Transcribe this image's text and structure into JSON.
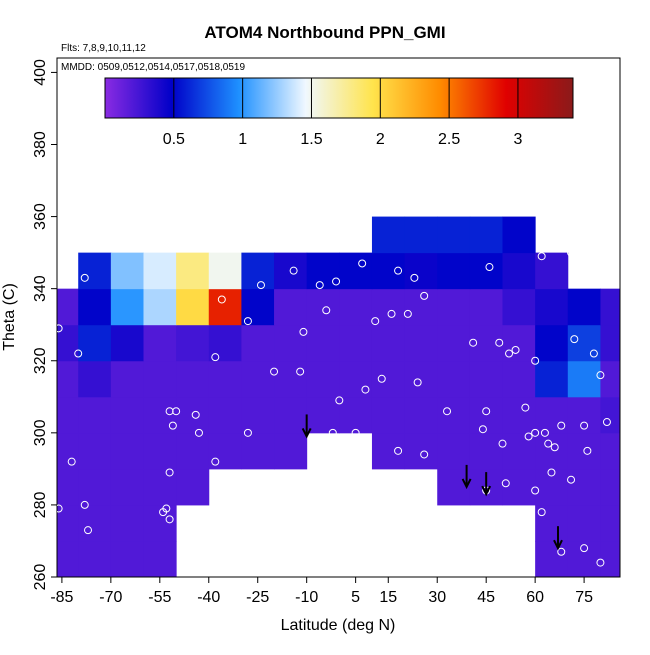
{
  "chart_data": {
    "type": "heatmap",
    "title": "ATOM4 Northbound PPN_GMI",
    "subtitle": "Flts: 7,8,9,10,11,12",
    "annotation": "MMDD: 0509,0512,0514,0517,0518,0519",
    "x_label": "Latitude (deg N)",
    "y_label": "Theta (C)",
    "xlim": [
      -86.5,
      86
    ],
    "ylim": [
      260,
      404
    ],
    "xticks": [
      -85,
      -70,
      -55,
      -40,
      -25,
      -10,
      5,
      15,
      30,
      45,
      60,
      75
    ],
    "yticks": [
      260,
      280,
      300,
      320,
      340,
      360,
      380,
      400
    ],
    "x_bins": [
      -90,
      -80,
      -70,
      -60,
      -50,
      -40,
      -30,
      -20,
      -10,
      0,
      10,
      20,
      30,
      40,
      50,
      60,
      70,
      80,
      90
    ],
    "y_bins": [
      260,
      270,
      280,
      290,
      300,
      310,
      320,
      330,
      340,
      350,
      360
    ],
    "z": [
      [
        0.2,
        0.2,
        0.2,
        0.2,
        null,
        null,
        null,
        null,
        null,
        null,
        null,
        null,
        null,
        null,
        null,
        0.2,
        0.2,
        0.2
      ],
      [
        0.2,
        0.2,
        0.2,
        0.2,
        null,
        null,
        null,
        null,
        null,
        null,
        null,
        null,
        null,
        null,
        null,
        0.2,
        0.2,
        0.2
      ],
      [
        0.2,
        0.2,
        0.2,
        0.2,
        0.2,
        null,
        null,
        null,
        null,
        null,
        null,
        null,
        0.2,
        0.2,
        0.2,
        0.2,
        0.2,
        0.2
      ],
      [
        0.2,
        0.2,
        0.2,
        0.2,
        0.2,
        0.2,
        0.2,
        0.2,
        null,
        null,
        0.2,
        0.2,
        0.2,
        0.2,
        0.2,
        0.2,
        0.2,
        0.2
      ],
      [
        0.2,
        0.2,
        0.2,
        0.2,
        0.2,
        0.2,
        0.2,
        0.2,
        0.2,
        0.2,
        0.2,
        0.2,
        0.2,
        0.2,
        0.2,
        0.2,
        0.2,
        0.25
      ],
      [
        0.2,
        0.3,
        0.2,
        0.2,
        0.2,
        0.2,
        0.2,
        0.2,
        0.2,
        0.2,
        0.2,
        0.2,
        0.2,
        0.2,
        0.2,
        0.6,
        0.9,
        0.2
      ],
      [
        0.3,
        0.6,
        0.4,
        0.2,
        0.25,
        0.3,
        0.2,
        0.2,
        0.2,
        0.2,
        0.2,
        0.2,
        0.2,
        0.2,
        0.2,
        0.5,
        0.7,
        0.3
      ],
      [
        0.2,
        0.5,
        1.0,
        1.3,
        2.0,
        2.8,
        0.5,
        0.2,
        0.2,
        0.2,
        0.2,
        0.2,
        0.2,
        0.2,
        0.3,
        0.4,
        0.5,
        0.3
      ],
      [
        null,
        0.6,
        1.2,
        1.4,
        1.8,
        1.5,
        0.6,
        0.4,
        0.5,
        0.5,
        0.5,
        0.45,
        0.5,
        0.5,
        0.4,
        0.3,
        null,
        null
      ],
      [
        null,
        null,
        null,
        null,
        null,
        null,
        null,
        null,
        null,
        null,
        0.6,
        0.6,
        0.6,
        0.6,
        0.5,
        null,
        null,
        null
      ]
    ],
    "zlim": [
      0,
      3.4
    ],
    "zticks": [
      0.5,
      1.0,
      1.5,
      2.0,
      2.5,
      3.0
    ],
    "colorscale": [
      "#8a2be2",
      "#0000c8",
      "#1e90ff",
      "#f0f8ff",
      "#ffe44d",
      "#ff8c00",
      "#e00000",
      "#8b1a1a"
    ],
    "points": {
      "color": "#ffffff",
      "x": [
        -86,
        -80,
        -78,
        -82,
        -78,
        -77,
        -86,
        -54,
        -53,
        -52,
        -52,
        -52,
        -50,
        -51,
        -44,
        -43,
        -38,
        -38,
        -36,
        -28,
        -28,
        -24,
        -20,
        -14,
        -12,
        -11,
        -6,
        -4,
        -1,
        0,
        -2,
        5,
        7,
        8,
        11,
        13,
        16,
        18,
        18,
        21,
        23,
        24,
        26,
        26,
        33,
        41,
        44,
        45,
        45,
        46,
        49,
        50,
        51,
        52,
        54,
        57,
        58,
        60,
        60,
        60,
        62,
        62,
        63,
        64,
        65,
        66,
        68,
        68,
        71,
        71,
        72,
        75,
        75,
        76,
        78,
        80,
        80,
        82
      ],
      "y": [
        329,
        322,
        343,
        292,
        280,
        273,
        279,
        278,
        279,
        276,
        289,
        306,
        306,
        302,
        305,
        300,
        292,
        321,
        337,
        300,
        331,
        341,
        317,
        345,
        317,
        328,
        341,
        334,
        342,
        309,
        300,
        300,
        347,
        312,
        331,
        315,
        333,
        345,
        295,
        333,
        343,
        314,
        338,
        294,
        306,
        325,
        301,
        306,
        284,
        346,
        325,
        297,
        286,
        322,
        323,
        307,
        299,
        284,
        320,
        300,
        278,
        349,
        300,
        297,
        289,
        296,
        267,
        302,
        287,
        350,
        326,
        302,
        268,
        295,
        322,
        316,
        264,
        303
      ]
    },
    "arrows": {
      "x": [
        -10,
        39,
        45,
        67
      ],
      "y": [
        299,
        285,
        283,
        268
      ]
    }
  }
}
